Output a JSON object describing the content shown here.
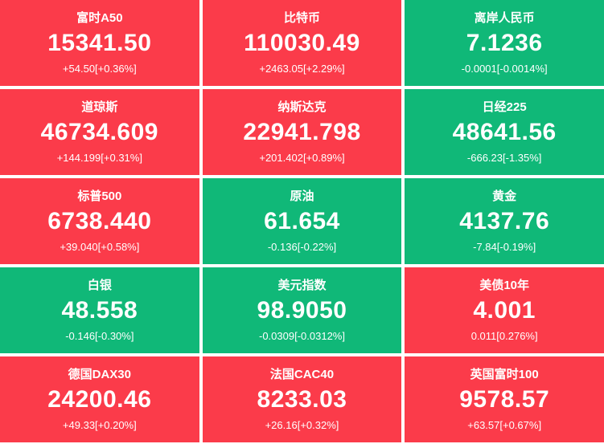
{
  "colors": {
    "up": "#fb3b4a",
    "down": "#10b878",
    "text": "#ffffff",
    "page_bg": "#ffffff"
  },
  "tiles": [
    {
      "name": "富时A50",
      "value": "15341.50",
      "change": "+54.50[+0.36%]",
      "direction": "up"
    },
    {
      "name": "比特币",
      "value": "110030.49",
      "change": "+2463.05[+2.29%]",
      "direction": "up"
    },
    {
      "name": "离岸人民币",
      "value": "7.1236",
      "change": "-0.0001[-0.0014%]",
      "direction": "down"
    },
    {
      "name": "道琼斯",
      "value": "46734.609",
      "change": "+144.199[+0.31%]",
      "direction": "up"
    },
    {
      "name": "纳斯达克",
      "value": "22941.798",
      "change": "+201.402[+0.89%]",
      "direction": "up"
    },
    {
      "name": "日经225",
      "value": "48641.56",
      "change": "-666.23[-1.35%]",
      "direction": "down"
    },
    {
      "name": "标普500",
      "value": "6738.440",
      "change": "+39.040[+0.58%]",
      "direction": "up"
    },
    {
      "name": "原油",
      "value": "61.654",
      "change": "-0.136[-0.22%]",
      "direction": "down"
    },
    {
      "name": "黄金",
      "value": "4137.76",
      "change": "-7.84[-0.19%]",
      "direction": "down"
    },
    {
      "name": "白银",
      "value": "48.558",
      "change": "-0.146[-0.30%]",
      "direction": "down"
    },
    {
      "name": "美元指数",
      "value": "98.9050",
      "change": "-0.0309[-0.0312%]",
      "direction": "down"
    },
    {
      "name": "美债10年",
      "value": "4.001",
      "change": "0.011[0.276%]",
      "direction": "up"
    },
    {
      "name": "德国DAX30",
      "value": "24200.46",
      "change": "+49.33[+0.20%]",
      "direction": "up"
    },
    {
      "name": "法国CAC40",
      "value": "8233.03",
      "change": "+26.16[+0.32%]",
      "direction": "up"
    },
    {
      "name": "英国富时100",
      "value": "9578.57",
      "change": "+63.57[+0.67%]",
      "direction": "up"
    }
  ]
}
